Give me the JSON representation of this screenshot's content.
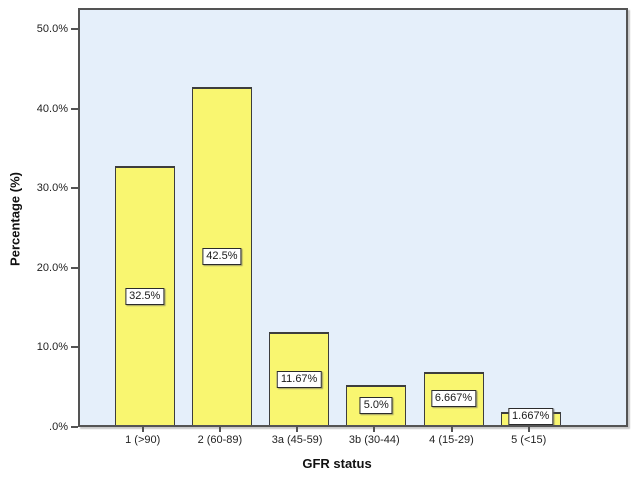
{
  "chart_data": {
    "type": "bar",
    "title": "",
    "xlabel": "GFR status",
    "ylabel": "Percentage (%)",
    "categories": [
      "1 (>90)",
      "2 (60-89)",
      "3a (45-59)",
      "3b (30-44)",
      "4 (15-29)",
      "5 (<15)"
    ],
    "values": [
      32.5,
      42.5,
      11.67,
      5.0,
      6.667,
      1.667
    ],
    "bar_value_labels": [
      "32.5%",
      "42.5%",
      "11.67%",
      "5.0%",
      "6.667%",
      "1.667%"
    ],
    "y_tick_labels": [
      ".0%",
      "10.0%",
      "20.0%",
      "30.0%",
      "40.0%",
      "50.0%"
    ],
    "y_tick_values": [
      0,
      10,
      20,
      30,
      40,
      50
    ],
    "ylim": [
      0,
      52.6
    ],
    "grid": false,
    "legend": "none",
    "colors": {
      "bar_fill": "#F9F670",
      "bar_border": "#3d3d3d",
      "plot_background": "#E5EFFA",
      "frame_border": "#545454",
      "label_box_background": "#FFFFFF",
      "text": "#1A1A1A"
    }
  }
}
